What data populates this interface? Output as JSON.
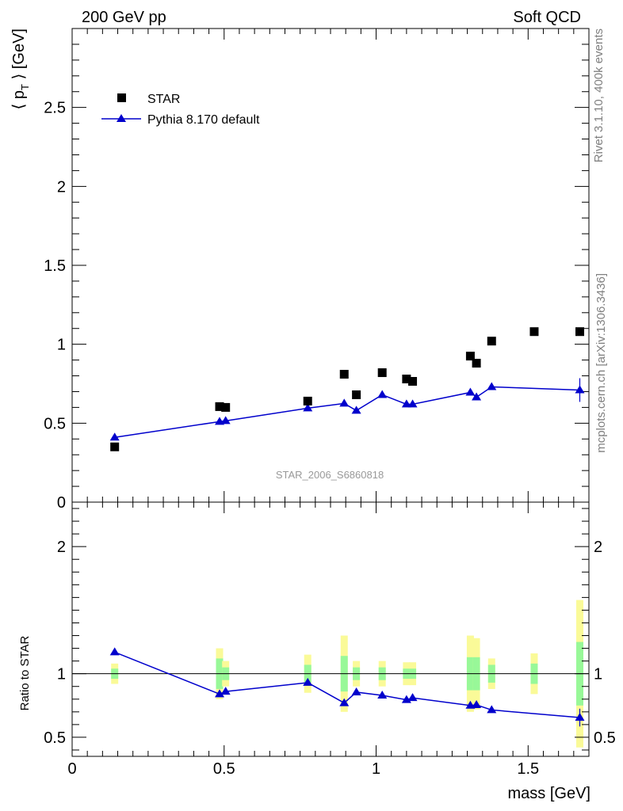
{
  "header": {
    "left": "200 GeV pp",
    "right": "Soft QCD"
  },
  "side": {
    "upper": "Rivet 3.1.10,  400k events",
    "lower": "mcplots.cern.ch [arXiv:1306.3436]"
  },
  "colors": {
    "data": "#000000",
    "mc": "#0000cc",
    "band_inner": "#98f898",
    "band_outer": "#fafa98"
  },
  "chart_data": [
    {
      "type": "scatter",
      "panel": "main",
      "ylabel_main": "⟨ p",
      "ylabel_sub": "T",
      "ylabel_rest": " ⟩ [GeV]",
      "watermark": "STAR_2006_S6860818",
      "xlim": [
        0,
        1.7
      ],
      "ylim": [
        0,
        3.0
      ],
      "yticks": [
        0,
        0.5,
        1,
        1.5,
        2,
        2.5
      ],
      "ytick_labels": [
        "0",
        "0.5",
        "1",
        "1.5",
        "2",
        "2.5"
      ],
      "legend_position": "top-left",
      "series": [
        {
          "name": "STAR",
          "kind": "markers",
          "points": [
            {
              "x": 0.14,
              "y": 0.35
            },
            {
              "x": 0.485,
              "y": 0.605
            },
            {
              "x": 0.505,
              "y": 0.6
            },
            {
              "x": 0.775,
              "y": 0.64
            },
            {
              "x": 0.895,
              "y": 0.81
            },
            {
              "x": 0.935,
              "y": 0.68
            },
            {
              "x": 1.02,
              "y": 0.82
            },
            {
              "x": 1.1,
              "y": 0.78
            },
            {
              "x": 1.12,
              "y": 0.765
            },
            {
              "x": 1.31,
              "y": 0.925
            },
            {
              "x": 1.33,
              "y": 0.88
            },
            {
              "x": 1.38,
              "y": 1.02
            },
            {
              "x": 1.52,
              "y": 1.08
            },
            {
              "x": 1.67,
              "y": 1.08
            }
          ]
        },
        {
          "name": "Pythia 8.170 default",
          "kind": "line",
          "points": [
            {
              "x": 0.14,
              "y": 0.41
            },
            {
              "x": 0.485,
              "y": 0.51
            },
            {
              "x": 0.505,
              "y": 0.515
            },
            {
              "x": 0.775,
              "y": 0.595
            },
            {
              "x": 0.895,
              "y": 0.625
            },
            {
              "x": 0.935,
              "y": 0.58
            },
            {
              "x": 1.02,
              "y": 0.68
            },
            {
              "x": 1.1,
              "y": 0.62
            },
            {
              "x": 1.12,
              "y": 0.62
            },
            {
              "x": 1.31,
              "y": 0.695
            },
            {
              "x": 1.33,
              "y": 0.665
            },
            {
              "x": 1.38,
              "y": 0.73
            },
            {
              "x": 1.67,
              "y": 0.71,
              "err": 0.075
            }
          ]
        }
      ]
    },
    {
      "type": "scatter",
      "panel": "ratio",
      "ylabel": "Ratio to STAR",
      "xlabel": "mass [GeV]",
      "xlim": [
        0,
        1.7
      ],
      "ylim": [
        0.35,
        2.35
      ],
      "yticks": [
        0.5,
        1,
        2
      ],
      "ytick_labels": [
        "0.5",
        "1",
        "2"
      ],
      "xticks": [
        0,
        0.5,
        1,
        1.5
      ],
      "xtick_labels": [
        "0",
        "0.5",
        "1",
        "1.5"
      ],
      "bands": [
        {
          "x": 0.14,
          "inner": [
            0.96,
            1.04
          ],
          "outer": [
            0.92,
            1.08
          ]
        },
        {
          "x": 0.485,
          "inner": [
            0.88,
            1.12
          ],
          "outer": [
            0.8,
            1.2
          ]
        },
        {
          "x": 0.505,
          "inner": [
            0.95,
            1.05
          ],
          "outer": [
            0.9,
            1.1
          ]
        },
        {
          "x": 0.775,
          "inner": [
            0.93,
            1.07
          ],
          "outer": [
            0.85,
            1.15
          ]
        },
        {
          "x": 0.895,
          "inner": [
            0.86,
            1.14
          ],
          "outer": [
            0.7,
            1.3
          ]
        },
        {
          "x": 0.935,
          "inner": [
            0.95,
            1.05
          ],
          "outer": [
            0.9,
            1.1
          ]
        },
        {
          "x": 1.02,
          "inner": [
            0.95,
            1.05
          ],
          "outer": [
            0.9,
            1.1
          ]
        },
        {
          "x": 1.1,
          "inner": [
            0.96,
            1.04
          ],
          "outer": [
            0.91,
            1.09
          ]
        },
        {
          "x": 1.12,
          "inner": [
            0.96,
            1.04
          ],
          "outer": [
            0.91,
            1.09
          ]
        },
        {
          "x": 1.31,
          "inner": [
            0.87,
            1.13
          ],
          "outer": [
            0.7,
            1.3
          ]
        },
        {
          "x": 1.33,
          "inner": [
            0.87,
            1.13
          ],
          "outer": [
            0.72,
            1.28
          ]
        },
        {
          "x": 1.38,
          "inner": [
            0.93,
            1.07
          ],
          "outer": [
            0.88,
            1.12
          ]
        },
        {
          "x": 1.52,
          "inner": [
            0.92,
            1.08
          ],
          "outer": [
            0.84,
            1.16
          ]
        },
        {
          "x": 1.67,
          "inner": [
            0.75,
            1.25
          ],
          "outer": [
            0.42,
            1.58
          ]
        }
      ],
      "series": [
        {
          "name": "Pythia 8.170 default",
          "kind": "line",
          "points": [
            {
              "x": 0.14,
              "y": 1.17
            },
            {
              "x": 0.485,
              "y": 0.84
            },
            {
              "x": 0.505,
              "y": 0.86
            },
            {
              "x": 0.775,
              "y": 0.93
            },
            {
              "x": 0.895,
              "y": 0.77
            },
            {
              "x": 0.935,
              "y": 0.855
            },
            {
              "x": 1.02,
              "y": 0.83
            },
            {
              "x": 1.1,
              "y": 0.795
            },
            {
              "x": 1.12,
              "y": 0.81
            },
            {
              "x": 1.31,
              "y": 0.75
            },
            {
              "x": 1.33,
              "y": 0.755
            },
            {
              "x": 1.38,
              "y": 0.715
            },
            {
              "x": 1.67,
              "y": 0.655,
              "err": 0.07
            }
          ]
        }
      ]
    }
  ]
}
